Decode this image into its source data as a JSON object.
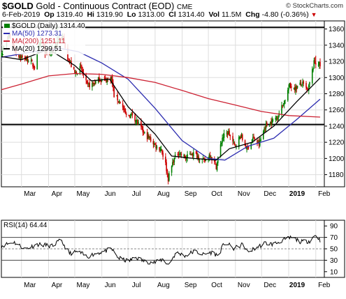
{
  "header": {
    "symbol": "$GOLD",
    "name": "Gold - Continuous Contract (EOD)",
    "exchange": "CME",
    "date": "6-Feb-2019",
    "open_label": "Op",
    "open": "1319.40",
    "high_label": "Hi",
    "high": "1319.90",
    "low_label": "Lo",
    "low": "1313.00",
    "close_label": "Cl",
    "close": "1314.40",
    "vol_label": "Vol",
    "vol": "11.5M",
    "chg_label": "Chg",
    "chg": "-4.80 (-0.36%)",
    "chg_icon": "down-triangle-icon",
    "watermark": "© StockCharts.com"
  },
  "legend": {
    "price": "$GOLD (Daily) 1314.40",
    "ma50": "MA(50) 1273.31",
    "ma200": "MA(200) 1251.11",
    "ma20": "MA(20) 1299.51"
  },
  "rsi_label": "RSI(14) 64.44",
  "colors": {
    "up": "#008000",
    "down": "#cc0000",
    "ma50": "#2c2cb0",
    "ma200": "#cc2233",
    "ma20": "#000000",
    "rsi": "#000000"
  },
  "chart_data": [
    {
      "type": "candlestick",
      "title": "$GOLD (Daily) 1314.40",
      "ylim": [
        1165,
        1370
      ],
      "y_ticks": [
        1180,
        1200,
        1220,
        1240,
        1260,
        1280,
        1300,
        1320,
        1340,
        1360
      ],
      "x_labels": [
        "Mar",
        "Apr",
        "May",
        "Jun",
        "Jul",
        "Aug",
        "Sep",
        "Oct",
        "Nov",
        "Dec",
        "2019",
        "Feb"
      ],
      "x_label_dates": [
        "2018-03-01",
        "2018-04-01",
        "2018-05-01",
        "2018-06-01",
        "2018-07-01",
        "2018-08-01",
        "2018-09-01",
        "2018-10-01",
        "2018-11-01",
        "2018-12-01",
        "2019-01-01",
        "2019-02-01"
      ],
      "date_range": [
        "2018-02-06",
        "2019-02-06"
      ],
      "horizontal_lines": [
        1362,
        1242
      ],
      "close_path": [
        [
          "2018-02-06",
          1330
        ],
        [
          "2018-02-15",
          1352
        ],
        [
          "2018-02-23",
          1330
        ],
        [
          "2018-03-02",
          1324
        ],
        [
          "2018-03-09",
          1322
        ],
        [
          "2018-03-16",
          1313
        ],
        [
          "2018-03-23",
          1346
        ],
        [
          "2018-03-30",
          1327
        ],
        [
          "2018-04-06",
          1334
        ],
        [
          "2018-04-13",
          1348
        ],
        [
          "2018-04-18",
          1348
        ],
        [
          "2018-04-23",
          1325
        ],
        [
          "2018-05-01",
          1305
        ],
        [
          "2018-05-08",
          1312
        ],
        [
          "2018-05-15",
          1290
        ],
        [
          "2018-05-22",
          1292
        ],
        [
          "2018-05-29",
          1298
        ],
        [
          "2018-06-05",
          1297
        ],
        [
          "2018-06-12",
          1300
        ],
        [
          "2018-06-15",
          1278
        ],
        [
          "2018-06-22",
          1270
        ],
        [
          "2018-06-29",
          1252
        ],
        [
          "2018-07-06",
          1255
        ],
        [
          "2018-07-13",
          1242
        ],
        [
          "2018-07-20",
          1230
        ],
        [
          "2018-07-27",
          1223
        ],
        [
          "2018-08-03",
          1214
        ],
        [
          "2018-08-08",
          1212
        ],
        [
          "2018-08-13",
          1193
        ],
        [
          "2018-08-16",
          1175
        ],
        [
          "2018-08-22",
          1198
        ],
        [
          "2018-08-28",
          1208
        ],
        [
          "2018-09-05",
          1200
        ],
        [
          "2018-09-12",
          1207
        ],
        [
          "2018-09-19",
          1203
        ],
        [
          "2018-09-26",
          1196
        ],
        [
          "2018-10-03",
          1205
        ],
        [
          "2018-10-10",
          1190
        ],
        [
          "2018-10-17",
          1226
        ],
        [
          "2018-10-24",
          1232
        ],
        [
          "2018-10-31",
          1215
        ],
        [
          "2018-11-07",
          1228
        ],
        [
          "2018-11-14",
          1212
        ],
        [
          "2018-11-21",
          1225
        ],
        [
          "2018-11-28",
          1217
        ],
        [
          "2018-12-05",
          1240
        ],
        [
          "2018-12-12",
          1245
        ],
        [
          "2018-12-19",
          1252
        ],
        [
          "2018-12-26",
          1268
        ],
        [
          "2019-01-02",
          1290
        ],
        [
          "2019-01-09",
          1287
        ],
        [
          "2019-01-16",
          1293
        ],
        [
          "2019-01-23",
          1283
        ],
        [
          "2019-01-30",
          1318
        ],
        [
          "2019-02-04",
          1318
        ],
        [
          "2019-02-06",
          1314.4
        ]
      ],
      "low_spikes": [
        [
          "2018-08-16",
          1168
        ]
      ],
      "high_spikes": [
        [
          "2018-04-11",
          1365
        ],
        [
          "2019-02-01",
          1327
        ]
      ],
      "series": [
        {
          "name": "MA(50)",
          "values": [
            [
              "2018-02-06",
              1325
            ],
            [
              "2018-03-15",
              1332
            ],
            [
              "2018-04-15",
              1336
            ],
            [
              "2018-05-05",
              1332
            ],
            [
              "2018-06-01",
              1318
            ],
            [
              "2018-07-01",
              1298
            ],
            [
              "2018-08-01",
              1262
            ],
            [
              "2018-09-01",
              1222
            ],
            [
              "2018-10-01",
              1200
            ],
            [
              "2018-10-20",
              1198
            ],
            [
              "2018-11-15",
              1215
            ],
            [
              "2018-12-15",
              1225
            ],
            [
              "2019-01-10",
              1248
            ],
            [
              "2019-02-06",
              1273.31
            ]
          ]
        },
        {
          "name": "MA(200)",
          "values": [
            [
              "2018-02-06",
              1285
            ],
            [
              "2018-03-01",
              1292
            ],
            [
              "2018-04-01",
              1302
            ],
            [
              "2018-05-01",
              1305
            ],
            [
              "2018-06-01",
              1304
            ],
            [
              "2018-07-01",
              1300
            ],
            [
              "2018-08-01",
              1294
            ],
            [
              "2018-09-01",
              1284
            ],
            [
              "2018-10-01",
              1274
            ],
            [
              "2018-11-01",
              1266
            ],
            [
              "2018-12-01",
              1258
            ],
            [
              "2019-01-01",
              1253
            ],
            [
              "2019-02-06",
              1251.11
            ]
          ]
        },
        {
          "name": "MA(20)",
          "values": [
            [
              "2018-02-06",
              1326
            ],
            [
              "2018-03-01",
              1322
            ],
            [
              "2018-04-01",
              1335
            ],
            [
              "2018-05-01",
              1315
            ],
            [
              "2018-05-20",
              1296
            ],
            [
              "2018-06-10",
              1298
            ],
            [
              "2018-07-01",
              1264
            ],
            [
              "2018-08-01",
              1230
            ],
            [
              "2018-08-20",
              1203
            ],
            [
              "2018-09-15",
              1200
            ],
            [
              "2018-10-10",
              1198
            ],
            [
              "2018-10-25",
              1212
            ],
            [
              "2018-11-20",
              1220
            ],
            [
              "2018-12-15",
              1240
            ],
            [
              "2019-01-10",
              1270
            ],
            [
              "2019-02-06",
              1299.51
            ]
          ]
        }
      ]
    },
    {
      "type": "line",
      "title": "RSI(14) 64.44",
      "ylim": [
        0,
        100
      ],
      "y_ticks": [
        10,
        30,
        50,
        70,
        90
      ],
      "reference_lines": [
        30,
        50,
        70
      ],
      "x_labels": [
        "Mar",
        "Apr",
        "May",
        "Jun",
        "Jul",
        "Aug",
        "Sep",
        "Oct",
        "Nov",
        "Dec",
        "2019",
        "Feb"
      ],
      "series": [
        {
          "name": "RSI(14)",
          "values": [
            [
              "2018-02-06",
              55
            ],
            [
              "2018-02-20",
              62
            ],
            [
              "2018-03-05",
              50
            ],
            [
              "2018-03-20",
              58
            ],
            [
              "2018-04-05",
              55
            ],
            [
              "2018-04-15",
              65
            ],
            [
              "2018-04-25",
              42
            ],
            [
              "2018-05-05",
              45
            ],
            [
              "2018-05-15",
              36
            ],
            [
              "2018-05-25",
              42
            ],
            [
              "2018-06-05",
              46
            ],
            [
              "2018-06-12",
              50
            ],
            [
              "2018-06-20",
              34
            ],
            [
              "2018-07-01",
              28
            ],
            [
              "2018-07-10",
              35
            ],
            [
              "2018-07-20",
              28
            ],
            [
              "2018-08-01",
              26
            ],
            [
              "2018-08-10",
              32
            ],
            [
              "2018-08-16",
              22
            ],
            [
              "2018-08-25",
              43
            ],
            [
              "2018-09-05",
              38
            ],
            [
              "2018-09-15",
              46
            ],
            [
              "2018-09-25",
              40
            ],
            [
              "2018-10-05",
              44
            ],
            [
              "2018-10-12",
              38
            ],
            [
              "2018-10-20",
              62
            ],
            [
              "2018-10-30",
              50
            ],
            [
              "2018-11-10",
              58
            ],
            [
              "2018-11-15",
              44
            ],
            [
              "2018-11-25",
              52
            ],
            [
              "2018-12-05",
              60
            ],
            [
              "2018-12-15",
              58
            ],
            [
              "2018-12-25",
              65
            ],
            [
              "2019-01-05",
              70
            ],
            [
              "2019-01-15",
              62
            ],
            [
              "2019-01-25",
              64
            ],
            [
              "2019-02-01",
              75
            ],
            [
              "2019-02-06",
              64.44
            ]
          ]
        }
      ]
    }
  ]
}
